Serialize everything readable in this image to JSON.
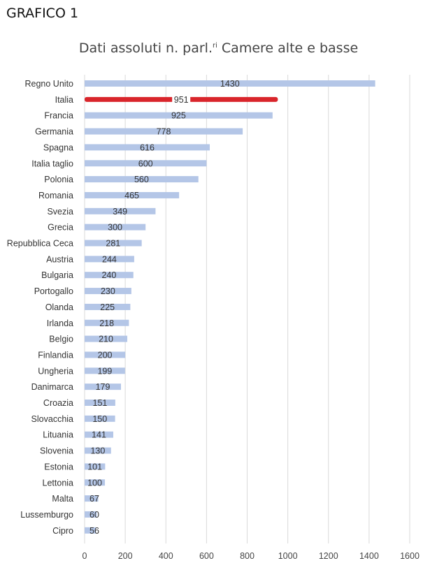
{
  "header": {
    "label": "GRAFICO 1"
  },
  "chart_data": {
    "type": "bar",
    "orientation": "horizontal",
    "title": "Dati assoluti n. parl.",
    "title_superscript": "ri",
    "title_suffix": " Camere alte e basse",
    "categories": [
      "Regno Unito",
      "Italia",
      "Francia",
      "Germania",
      "Spagna",
      "Italia taglio",
      "Polonia",
      "Romania",
      "Svezia",
      "Grecia",
      "Repubblica Ceca",
      "Austria",
      "Bulgaria",
      "Portogallo",
      "Olanda",
      "Irlanda",
      "Belgio",
      "Finlandia",
      "Ungheria",
      "Danimarca",
      "Croazia",
      "Slovacchia",
      "Lituania",
      "Slovenia",
      "Estonia",
      "Lettonia",
      "Malta",
      "Lussemburgo",
      "Cipro"
    ],
    "values": [
      1430,
      951,
      925,
      778,
      616,
      600,
      560,
      465,
      349,
      300,
      281,
      244,
      240,
      230,
      225,
      218,
      210,
      200,
      199,
      179,
      151,
      150,
      141,
      130,
      101,
      100,
      67,
      60,
      56
    ],
    "highlight": "Italia",
    "colors": {
      "bar": "#b4c6e7",
      "highlight": "#d9252b",
      "grid": "#d9d9d9"
    },
    "xlim": [
      0,
      1600
    ],
    "xticks": [
      0,
      200,
      400,
      600,
      800,
      1000,
      1200,
      1400,
      1600
    ],
    "grid": true,
    "xlabel": "",
    "ylabel": ""
  }
}
